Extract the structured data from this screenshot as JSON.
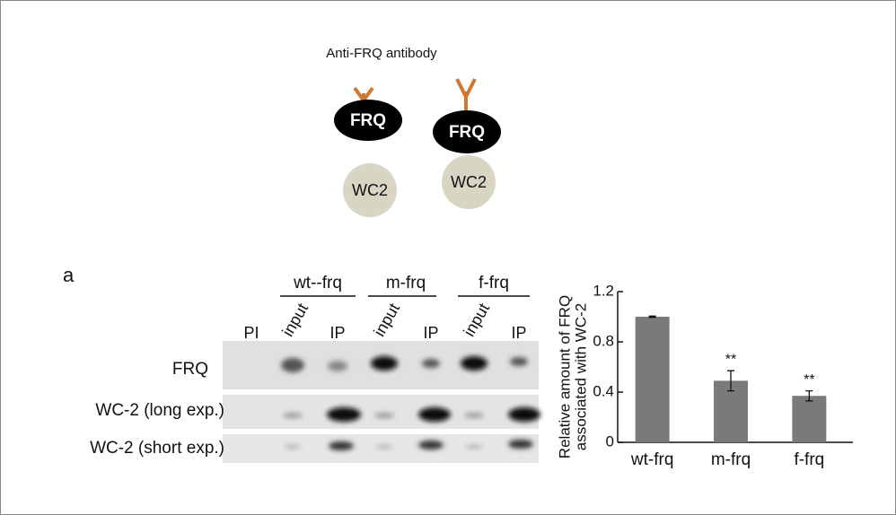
{
  "diagram": {
    "antibody_label": "Anti-FRQ antibody",
    "complexes": [
      {
        "top": "FRQ",
        "bottom": "WC2"
      },
      {
        "top": "FRQ",
        "bottom": "WC2"
      }
    ]
  },
  "blot": {
    "panel": "a",
    "groups": [
      "wt--frq",
      "m-frq",
      "f-frq"
    ],
    "lanes": [
      "PI",
      "input",
      "IP",
      "input",
      "IP",
      "input",
      "IP"
    ],
    "rows": [
      "FRQ",
      "WC-2 (long exp.)",
      "WC-2 (short exp.)"
    ]
  },
  "chart_data": {
    "type": "bar",
    "ylabel": [
      "Relative amount of FRQ",
      "associated with WC-2"
    ],
    "categories": [
      "wt-frq",
      "m-frq",
      "f-frq"
    ],
    "values": [
      1.0,
      0.49,
      0.37
    ],
    "errors": [
      0.005,
      0.08,
      0.04
    ],
    "significance": [
      null,
      "**",
      "**"
    ],
    "color": "#7a7a7a",
    "ylim": [
      0,
      1.2
    ],
    "yticks": [
      0,
      0.4,
      0.8,
      1.2
    ]
  }
}
